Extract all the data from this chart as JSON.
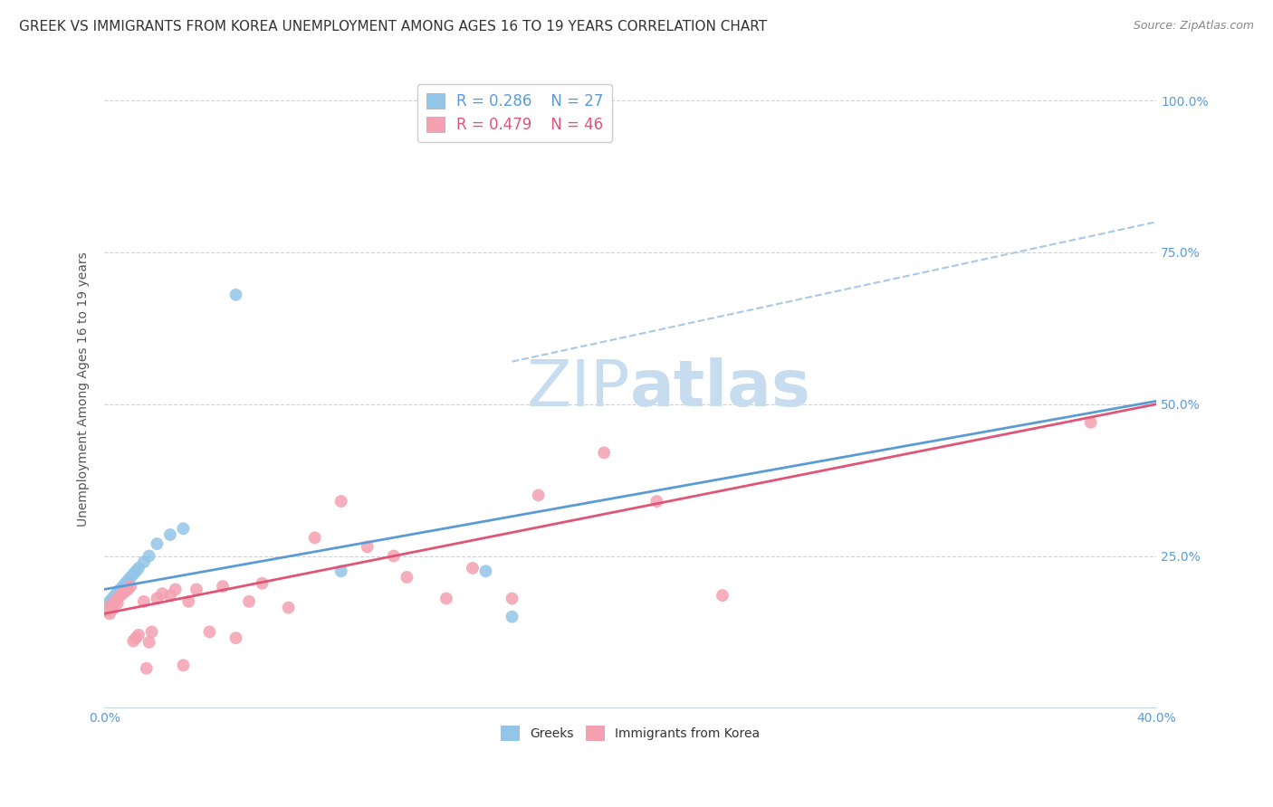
{
  "title": "GREEK VS IMMIGRANTS FROM KOREA UNEMPLOYMENT AMONG AGES 16 TO 19 YEARS CORRELATION CHART",
  "source": "Source: ZipAtlas.com",
  "ylabel": "Unemployment Among Ages 16 to 19 years",
  "xlim": [
    0.0,
    0.4
  ],
  "ylim": [
    0.0,
    1.05
  ],
  "xticks": [
    0.0,
    0.4
  ],
  "yticks": [
    0.25,
    0.5,
    0.75,
    1.0
  ],
  "greek_color": "#92C5E8",
  "korean_color": "#F4A0B0",
  "greek_line_color": "#5B9BD5",
  "korean_line_color": "#E05575",
  "dashed_line_color": "#A8C8E8",
  "watermark_color": "#C8DCF0",
  "tick_color": "#5B9BD5",
  "axis_label_color": "#555555",
  "title_color": "#333333",
  "background_color": "#FFFFFF",
  "title_fontsize": 11,
  "axis_label_fontsize": 10,
  "tick_fontsize": 10,
  "legend_fontsize": 12,
  "source_fontsize": 9,
  "watermark_fontsize": 52,
  "legend_r_greek": "R = 0.286",
  "legend_n_greek": "N = 27",
  "legend_r_korean": "R = 0.479",
  "legend_n_korean": "N = 46",
  "greek_x": [
    0.001,
    0.002,
    0.002,
    0.003,
    0.003,
    0.004,
    0.005,
    0.005,
    0.006,
    0.006,
    0.007,
    0.007,
    0.008,
    0.009,
    0.01,
    0.011,
    0.012,
    0.013,
    0.015,
    0.017,
    0.02,
    0.025,
    0.03,
    0.05,
    0.09,
    0.145,
    0.155
  ],
  "greek_y": [
    0.17,
    0.165,
    0.175,
    0.18,
    0.172,
    0.185,
    0.19,
    0.183,
    0.195,
    0.188,
    0.192,
    0.2,
    0.205,
    0.21,
    0.215,
    0.22,
    0.225,
    0.23,
    0.24,
    0.25,
    0.27,
    0.285,
    0.295,
    0.68,
    0.225,
    0.225,
    0.15
  ],
  "korean_x": [
    0.001,
    0.002,
    0.002,
    0.003,
    0.003,
    0.004,
    0.005,
    0.005,
    0.006,
    0.007,
    0.008,
    0.009,
    0.01,
    0.011,
    0.012,
    0.013,
    0.015,
    0.016,
    0.017,
    0.018,
    0.02,
    0.022,
    0.025,
    0.027,
    0.03,
    0.032,
    0.035,
    0.04,
    0.045,
    0.05,
    0.055,
    0.06,
    0.07,
    0.08,
    0.09,
    0.1,
    0.11,
    0.115,
    0.13,
    0.14,
    0.155,
    0.165,
    0.19,
    0.21,
    0.235,
    0.375
  ],
  "korean_y": [
    0.16,
    0.155,
    0.165,
    0.17,
    0.162,
    0.175,
    0.18,
    0.172,
    0.185,
    0.188,
    0.192,
    0.195,
    0.2,
    0.11,
    0.115,
    0.12,
    0.175,
    0.065,
    0.108,
    0.125,
    0.18,
    0.188,
    0.185,
    0.195,
    0.07,
    0.175,
    0.195,
    0.125,
    0.2,
    0.115,
    0.175,
    0.205,
    0.165,
    0.28,
    0.34,
    0.265,
    0.25,
    0.215,
    0.18,
    0.23,
    0.18,
    0.35,
    0.42,
    0.34,
    0.185,
    0.47
  ],
  "greek_line_x0": 0.0,
  "greek_line_y0": 0.195,
  "greek_line_x1": 0.4,
  "greek_line_y1": 0.505,
  "korean_line_x0": 0.0,
  "korean_line_y0": 0.155,
  "korean_line_x1": 0.4,
  "korean_line_y1": 0.5,
  "dashed_line_x0": 0.155,
  "dashed_line_y0": 0.57,
  "dashed_line_x1": 0.4,
  "dashed_line_y1": 0.8
}
